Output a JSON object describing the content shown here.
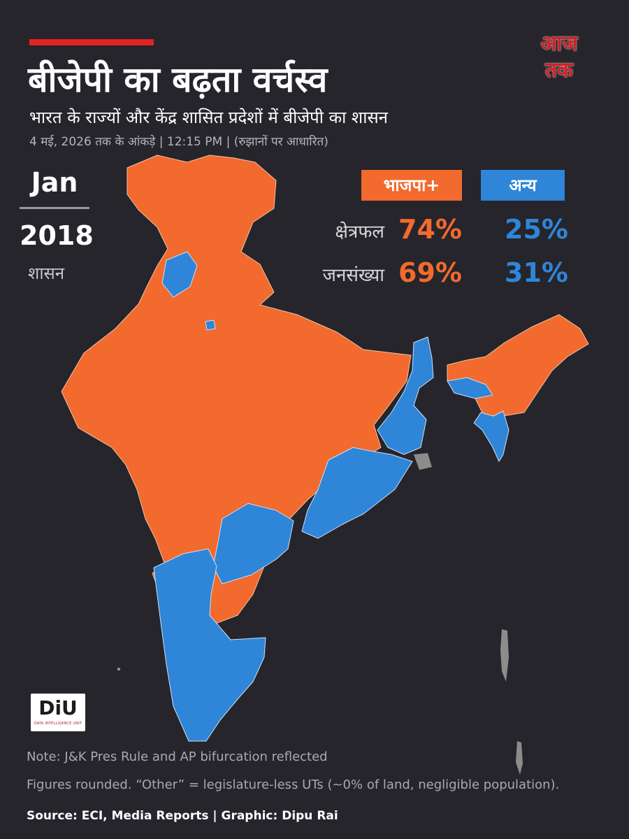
{
  "header": {
    "title": "बीजेपी का बढ़ता वर्चस्व",
    "subtitle": "भारत के राज्यों और केंद्र शासित प्रदेशों में बीजेपी का शासन",
    "dateline": "4 मई, 2026 तक के आंकड़े | 12:15 PM | (रुझानों पर आधारित)"
  },
  "logo": {
    "line1": "आज",
    "line2": "तक"
  },
  "period": {
    "month": "Jan",
    "year": "2018",
    "caption": "शासन"
  },
  "legend": {
    "bjp_label": "भाजपा+",
    "other_label": "अन्य"
  },
  "stats": [
    {
      "label": "क्षेत्रफल",
      "bjp": "74%",
      "other": "25%"
    },
    {
      "label": "जनसंख्या",
      "bjp": "69%",
      "other": "31%"
    }
  ],
  "colors": {
    "background": "#25252b",
    "bjp": "#f26a2e",
    "other": "#2f85d8",
    "unassigned": "#8c8c8c",
    "accent_red": "#e52222"
  },
  "map_regions": [
    {
      "region": "Jammu & Kashmir / Ladakh",
      "party": "bjp"
    },
    {
      "region": "Himachal Pradesh",
      "party": "bjp"
    },
    {
      "region": "Punjab",
      "party": "other"
    },
    {
      "region": "Delhi",
      "party": "other"
    },
    {
      "region": "Uttarakhand",
      "party": "bjp"
    },
    {
      "region": "Rajasthan, Gujarat, MP, UP, Bihar, Maharashtra, Chhattisgarh, Jharkhand, Goa",
      "party": "bjp"
    },
    {
      "region": "West Bengal",
      "party": "other"
    },
    {
      "region": "Odisha",
      "party": "other"
    },
    {
      "region": "Telangana",
      "party": "other"
    },
    {
      "region": "Andhra Pradesh",
      "party": "bjp"
    },
    {
      "region": "Karnataka, Kerala, Tamil Nadu",
      "party": "other"
    },
    {
      "region": "Northeast states",
      "party": "bjp"
    },
    {
      "region": "Meghalaya, Mizoram",
      "party": "other"
    }
  ],
  "badge": {
    "main": "DiU",
    "sub": "DATA INTELLIGENCE UNIT"
  },
  "footer": {
    "note1": "Note: J&K Pres Rule and AP bifurcation reflected",
    "note2": "Figures rounded. “Other” = legislature-less UTs (~0% of land, negligible population).",
    "credits": "Source: ECI, Media Reports  |  Graphic: Dipu Rai"
  }
}
